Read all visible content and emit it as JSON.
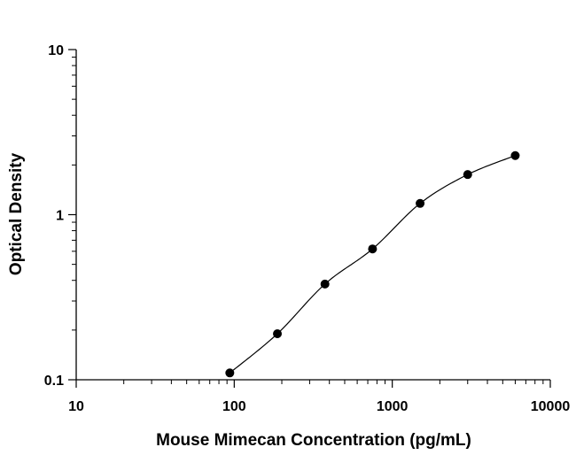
{
  "chart_data": {
    "type": "scatter",
    "xscale": "log",
    "yscale": "log",
    "xlim": [
      10,
      10000
    ],
    "ylim": [
      0.1,
      10
    ],
    "xlabel": "Mouse Mimecan Concentration (pg/mL)",
    "ylabel": "Optical Density",
    "x_ticks": [
      10,
      100,
      1000,
      10000
    ],
    "x_tick_labels": [
      "10",
      "100",
      "1000",
      "10000"
    ],
    "y_ticks": [
      0.1,
      1,
      10
    ],
    "y_tick_labels": [
      "0.1",
      "1",
      "10"
    ],
    "grid": false,
    "series": [
      {
        "x": [
          93.75,
          187.5,
          375,
          750,
          1500,
          3000,
          6000
        ],
        "y": [
          0.11,
          0.19,
          0.38,
          0.62,
          1.17,
          1.75,
          2.28
        ]
      }
    ],
    "fit_curve": "4PL",
    "colors": {
      "points": "#000000",
      "line": "#000000",
      "axes": "#000000"
    }
  }
}
